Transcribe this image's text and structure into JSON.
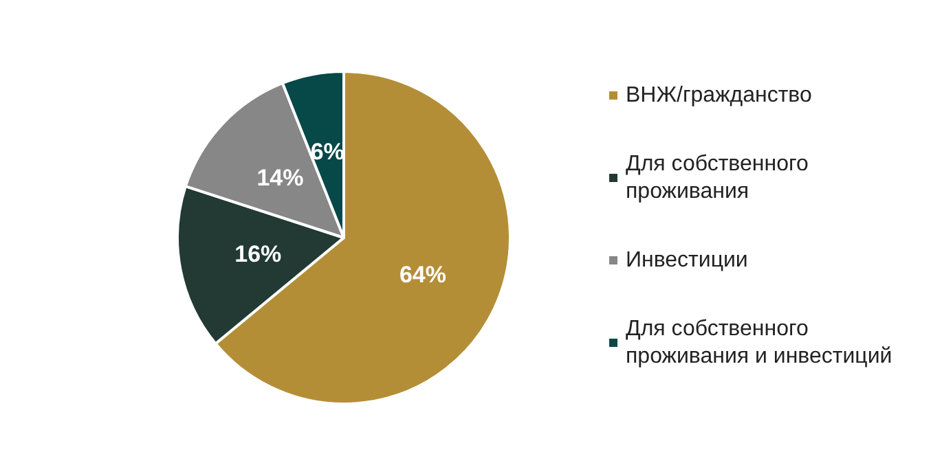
{
  "chart_data": {
    "type": "pie",
    "categories": [
      "ВНЖ/гражданство",
      "Для собственного проживания",
      "Инвестиции",
      "Для собственного проживания и инвестиций"
    ],
    "values": [
      64,
      16,
      14,
      6
    ],
    "value_labels": [
      "64%",
      "16%",
      "14%",
      "6%"
    ],
    "colors": [
      "#b48e37",
      "#223a33",
      "#878787",
      "#074848"
    ],
    "legend": "right"
  }
}
